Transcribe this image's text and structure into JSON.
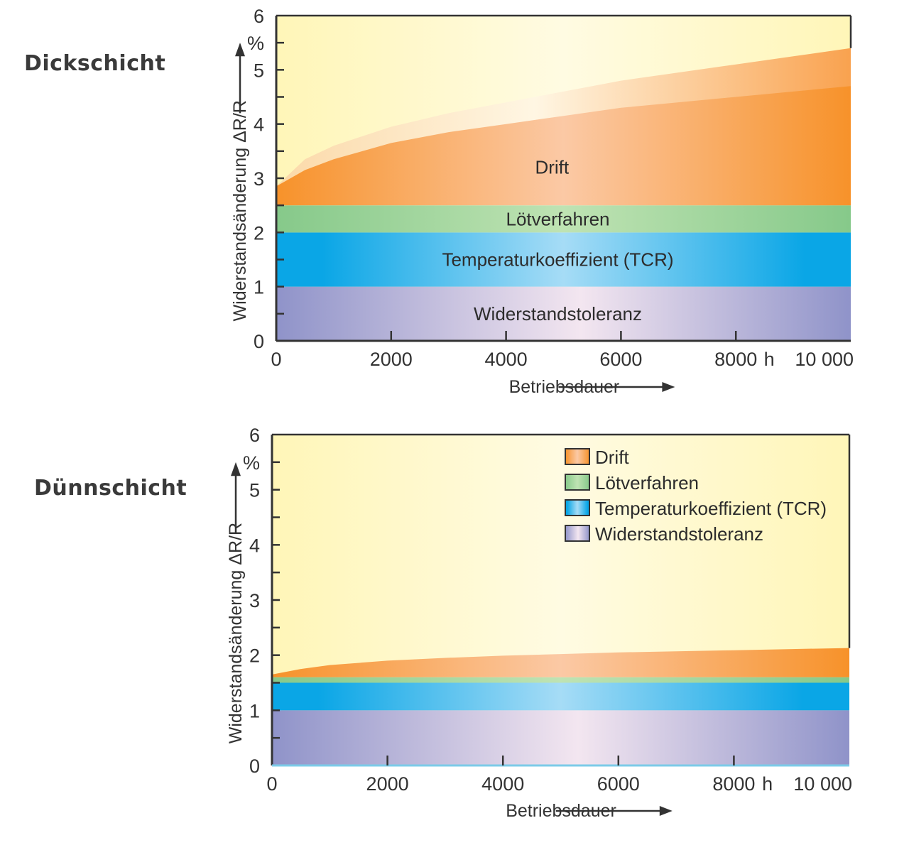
{
  "chart_data": [
    {
      "type": "area",
      "title": "Dickschicht",
      "xlabel": "Betriebsdauer",
      "xunit": "h",
      "ylabel": "Widerstandsänderung ΔR/R",
      "yunit": "%",
      "xlim": [
        0,
        10000
      ],
      "ylim": [
        0,
        6
      ],
      "x_ticks": [
        0,
        2000,
        4000,
        6000,
        8000,
        10000
      ],
      "x_tick_labels": [
        "0",
        "2000",
        "4000",
        "6000",
        "8000",
        "10 000"
      ],
      "y_ticks": [
        0,
        1,
        2,
        3,
        4,
        5,
        6
      ],
      "y_tick_labels": [
        "0",
        "1",
        "2",
        "3",
        "4",
        "5",
        "6"
      ],
      "legend": null,
      "bands": [
        {
          "name": "Widerstandstoleranz",
          "lower": 0,
          "upper": 1,
          "label_inside": true
        },
        {
          "name": "Temperaturkoeffizient (TCR)",
          "lower": 1,
          "upper": 2,
          "label_inside": true
        },
        {
          "name": "Lötverfahren",
          "lower": 2,
          "upper": 2.5,
          "label_inside": true
        }
      ],
      "drift": {
        "name": "Drift",
        "base": 2.5,
        "label_inside": true,
        "x": [
          0,
          500,
          1000,
          2000,
          3000,
          4000,
          5000,
          6000,
          7000,
          8000,
          9000,
          10000
        ],
        "upper": [
          2.85,
          3.35,
          3.6,
          3.95,
          4.2,
          4.4,
          4.6,
          4.8,
          4.95,
          5.1,
          5.25,
          5.4
        ],
        "inner": [
          2.85,
          3.15,
          3.35,
          3.65,
          3.85,
          4.0,
          4.15,
          4.3,
          4.4,
          4.5,
          4.6,
          4.7
        ]
      }
    },
    {
      "type": "area",
      "title": "Dünnschicht",
      "xlabel": "Betriebsdauer",
      "xunit": "h",
      "ylabel": "Widerstandsänderung ΔR/R",
      "yunit": "%",
      "xlim": [
        0,
        10000
      ],
      "ylim": [
        0,
        6
      ],
      "x_ticks": [
        0,
        2000,
        4000,
        6000,
        8000,
        10000
      ],
      "x_tick_labels": [
        "0",
        "2000",
        "4000",
        "6000",
        "8000",
        "10 000"
      ],
      "y_ticks": [
        0,
        1,
        2,
        3,
        4,
        5,
        6
      ],
      "y_tick_labels": [
        "0",
        "1",
        "2",
        "3",
        "4",
        "5",
        "6"
      ],
      "legend": {
        "placement": "top-right",
        "entries": [
          "Drift",
          "Lötverfahren",
          "Temperaturkoeffizient (TCR)",
          "Widerstandstoleranz"
        ]
      },
      "bands": [
        {
          "name": "Widerstandstoleranz",
          "lower": 0,
          "upper": 1,
          "label_inside": false
        },
        {
          "name": "Temperaturkoeffizient (TCR)",
          "lower": 1,
          "upper": 1.5,
          "label_inside": false
        },
        {
          "name": "Lötverfahren",
          "lower": 1.5,
          "upper": 1.6,
          "label_inside": false
        }
      ],
      "drift": {
        "name": "Drift",
        "base": 1.6,
        "label_inside": false,
        "x": [
          0,
          500,
          1000,
          2000,
          3000,
          4000,
          5000,
          6000,
          7000,
          8000,
          9000,
          10000
        ],
        "upper": [
          1.65,
          1.75,
          1.82,
          1.9,
          1.95,
          1.99,
          2.02,
          2.05,
          2.07,
          2.09,
          2.11,
          2.13
        ],
        "inner": null
      }
    }
  ],
  "colors": {
    "background_top": "#fff6b8",
    "background_mid": "#fffbe2",
    "drift_dark": "#f7922a",
    "drift_light": "#fbc9a5",
    "drift_band_light": "#fde0c4",
    "loet_dark": "#86c98a",
    "loet_light": "#bfe3b3",
    "tcr_dark": "#0aa6e6",
    "tcr_light": "#a6dcf6",
    "tol_dark": "#8f93c9",
    "tol_light": "#f3e6f0",
    "axis": "#333333"
  }
}
